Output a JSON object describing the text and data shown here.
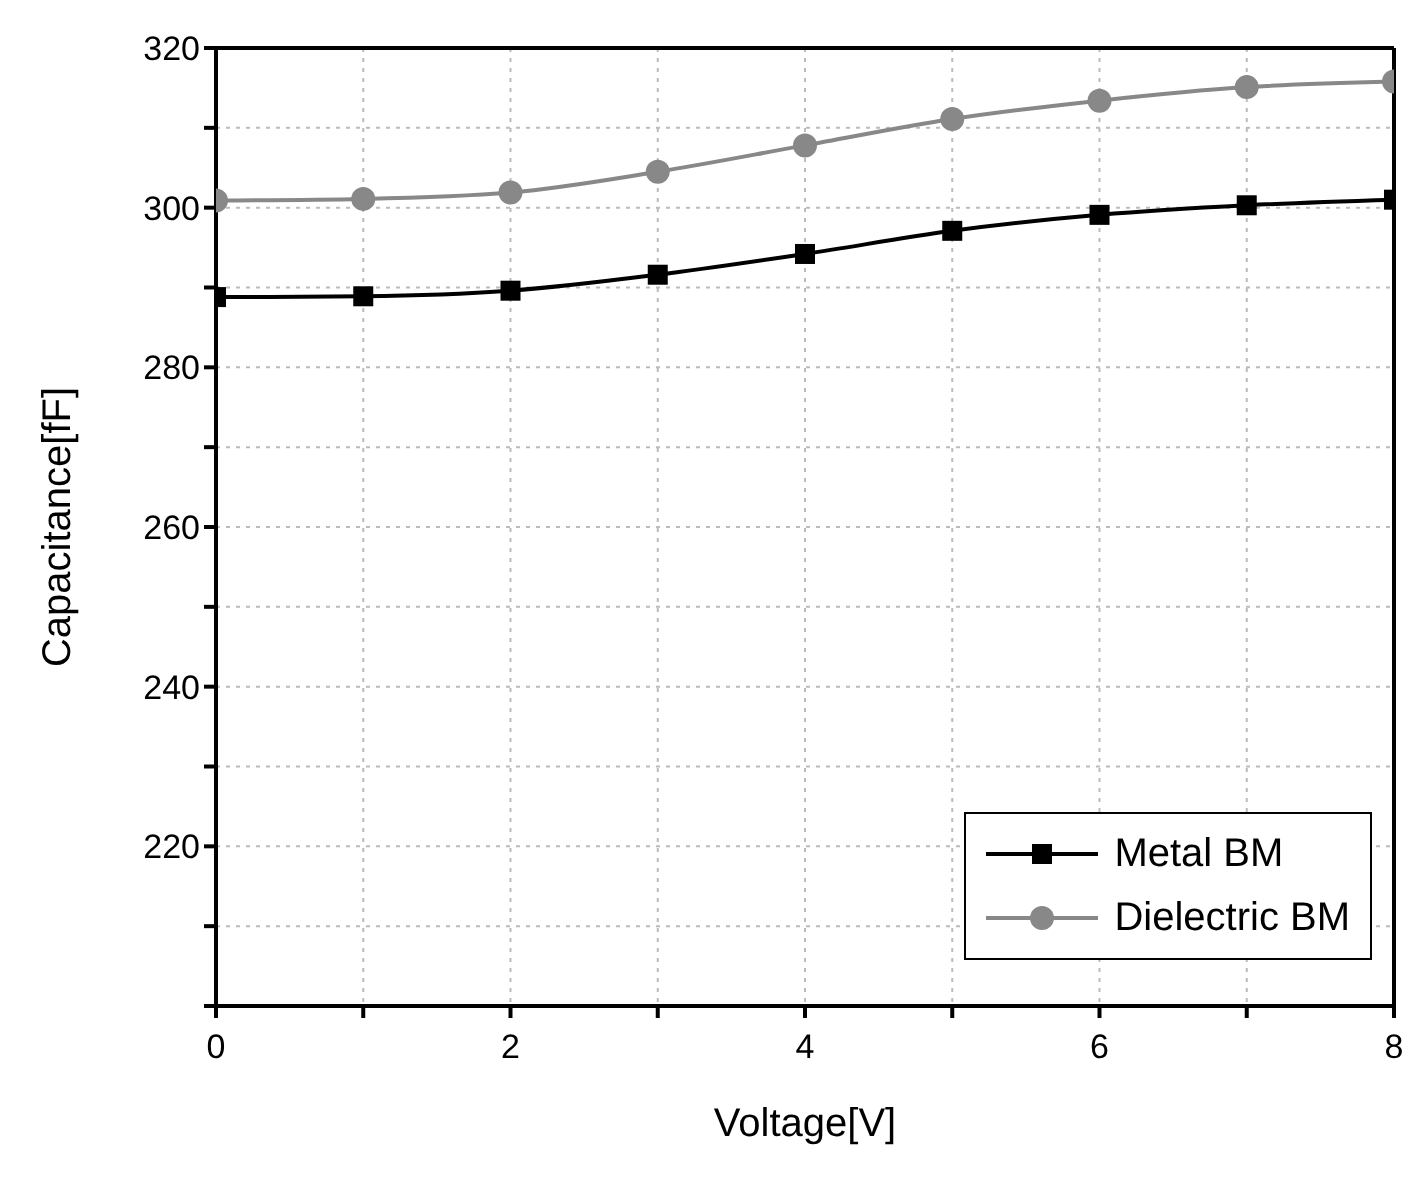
{
  "chart_data": {
    "type": "line",
    "xlabel": "Voltage[V]",
    "ylabel": "Capacitance[fF]",
    "x": [
      0,
      1,
      2,
      3,
      4,
      5,
      6,
      7,
      8
    ],
    "series": [
      {
        "name": "Metal BM",
        "color": "#000000",
        "marker": "square",
        "values": [
          288.8,
          288.9,
          289.6,
          291.6,
          294.2,
          297.1,
          299.1,
          300.3,
          301.0
        ]
      },
      {
        "name": "Dielectric BM",
        "color": "#888888",
        "marker": "circle",
        "values": [
          300.9,
          301.1,
          301.9,
          304.5,
          307.8,
          311.1,
          313.4,
          315.1,
          315.8
        ]
      }
    ],
    "xlim": [
      0,
      8
    ],
    "xticks": [
      0,
      {
        "value": 1,
        "label": null
      },
      2,
      {
        "value": 3,
        "label": null
      },
      4,
      {
        "value": 5,
        "label": null
      },
      6,
      {
        "value": 7,
        "label": null
      },
      8
    ],
    "ylim": [
      200,
      320
    ],
    "yticks": [
      {
        "value": 200,
        "label": null
      },
      {
        "value": 210,
        "label": null
      },
      220,
      {
        "value": 230,
        "label": null
      },
      240,
      {
        "value": 250,
        "label": null
      },
      260,
      {
        "value": 270,
        "label": null
      },
      280,
      {
        "value": 290,
        "label": null
      },
      300,
      {
        "value": 310,
        "label": null
      },
      320
    ],
    "grid": true,
    "legend": "bottom right",
    "line_style": "solid"
  }
}
